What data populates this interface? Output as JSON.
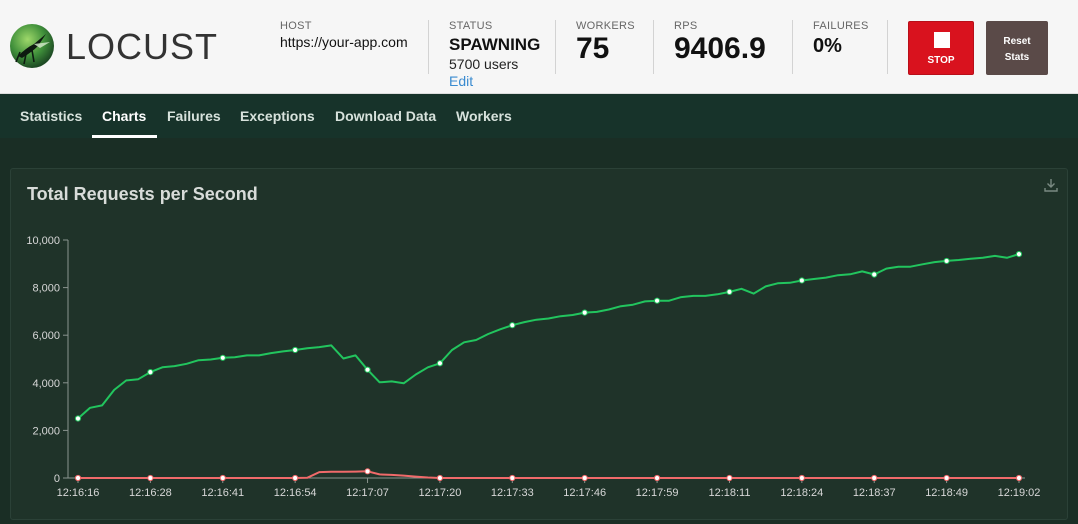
{
  "app": {
    "logo_text": "LOCUST"
  },
  "stats": {
    "host": {
      "label": "HOST",
      "value": "https://your-app.com"
    },
    "status": {
      "label": "STATUS",
      "value": "SPAWNING",
      "users": "5700 users",
      "edit": "Edit"
    },
    "workers": {
      "label": "WORKERS",
      "value": "75"
    },
    "rps": {
      "label": "RPS",
      "value": "9406.9"
    },
    "failures": {
      "label": "FAILURES",
      "value": "0%"
    }
  },
  "buttons": {
    "stop": "STOP",
    "reset_line1": "Reset",
    "reset_line2": "Stats"
  },
  "nav": {
    "tabs": [
      "Statistics",
      "Charts",
      "Failures",
      "Exceptions",
      "Download Data",
      "Workers"
    ],
    "active": "Charts"
  },
  "icons": {
    "logo": "locust-logo-icon",
    "download": "download-icon"
  },
  "colors": {
    "stop": "#d9121e",
    "rps_series": "#22c55e",
    "failures_series": "#f06a6a"
  },
  "chart_data": {
    "type": "line",
    "title": "Total Requests per Second",
    "xlabel": "",
    "ylabel": "",
    "ylim": [
      0,
      10000
    ],
    "yticks": [
      "0",
      "2,000",
      "4,000",
      "6,000",
      "8,000",
      "10,000"
    ],
    "xticks": [
      "12:16:16",
      "12:16:28",
      "12:16:41",
      "12:16:54",
      "12:17:07",
      "12:17:20",
      "12:17:33",
      "12:17:46",
      "12:17:59",
      "12:18:11",
      "12:18:24",
      "12:18:37",
      "12:18:49",
      "12:19:02"
    ],
    "grid": false,
    "legend": "none",
    "series": [
      {
        "name": "",
        "color": "#22c55e",
        "values": [
          2500,
          2950,
          3050,
          3700,
          4100,
          4150,
          4450,
          4650,
          4700,
          4800,
          4950,
          4980,
          5050,
          5070,
          5150,
          5150,
          5250,
          5320,
          5380,
          5450,
          5500,
          5570,
          5020,
          5150,
          4550,
          4020,
          4060,
          3980,
          4350,
          4650,
          4820,
          5380,
          5700,
          5800,
          6050,
          6250,
          6420,
          6550,
          6650,
          6700,
          6800,
          6850,
          6950,
          6980,
          7080,
          7220,
          7280,
          7420,
          7450,
          7450,
          7600,
          7650,
          7650,
          7720,
          7820,
          7950,
          7750,
          8050,
          8180,
          8200,
          8300,
          8360,
          8420,
          8520,
          8560,
          8680,
          8550,
          8800,
          8880,
          8880,
          8980,
          9070,
          9120,
          9160,
          9210,
          9250,
          9330,
          9250,
          9406.9
        ],
        "marker_indices": [
          0,
          6,
          12,
          18,
          24,
          30,
          36,
          42,
          48,
          54,
          60,
          66,
          72,
          78
        ]
      },
      {
        "name": "",
        "color": "#f06a6a",
        "values": [
          0,
          0,
          0,
          0,
          0,
          0,
          0,
          0,
          0,
          0,
          0,
          0,
          0,
          0,
          0,
          0,
          0,
          0,
          0,
          10,
          250,
          260,
          260,
          270,
          280,
          150,
          130,
          100,
          60,
          20,
          0,
          0,
          0,
          0,
          0,
          0,
          0,
          0,
          0,
          0,
          0,
          0,
          0,
          0,
          0,
          0,
          0,
          0,
          0,
          0,
          0,
          0,
          0,
          0,
          0,
          0,
          0,
          0,
          0,
          0,
          0,
          0,
          0,
          0,
          0,
          0,
          0,
          0,
          0,
          0,
          0,
          0,
          0,
          0,
          0,
          0,
          0,
          0,
          0
        ],
        "marker_indices": [
          0,
          6,
          12,
          18,
          24,
          30,
          36,
          42,
          48,
          54,
          60,
          66,
          72,
          78
        ]
      }
    ]
  }
}
